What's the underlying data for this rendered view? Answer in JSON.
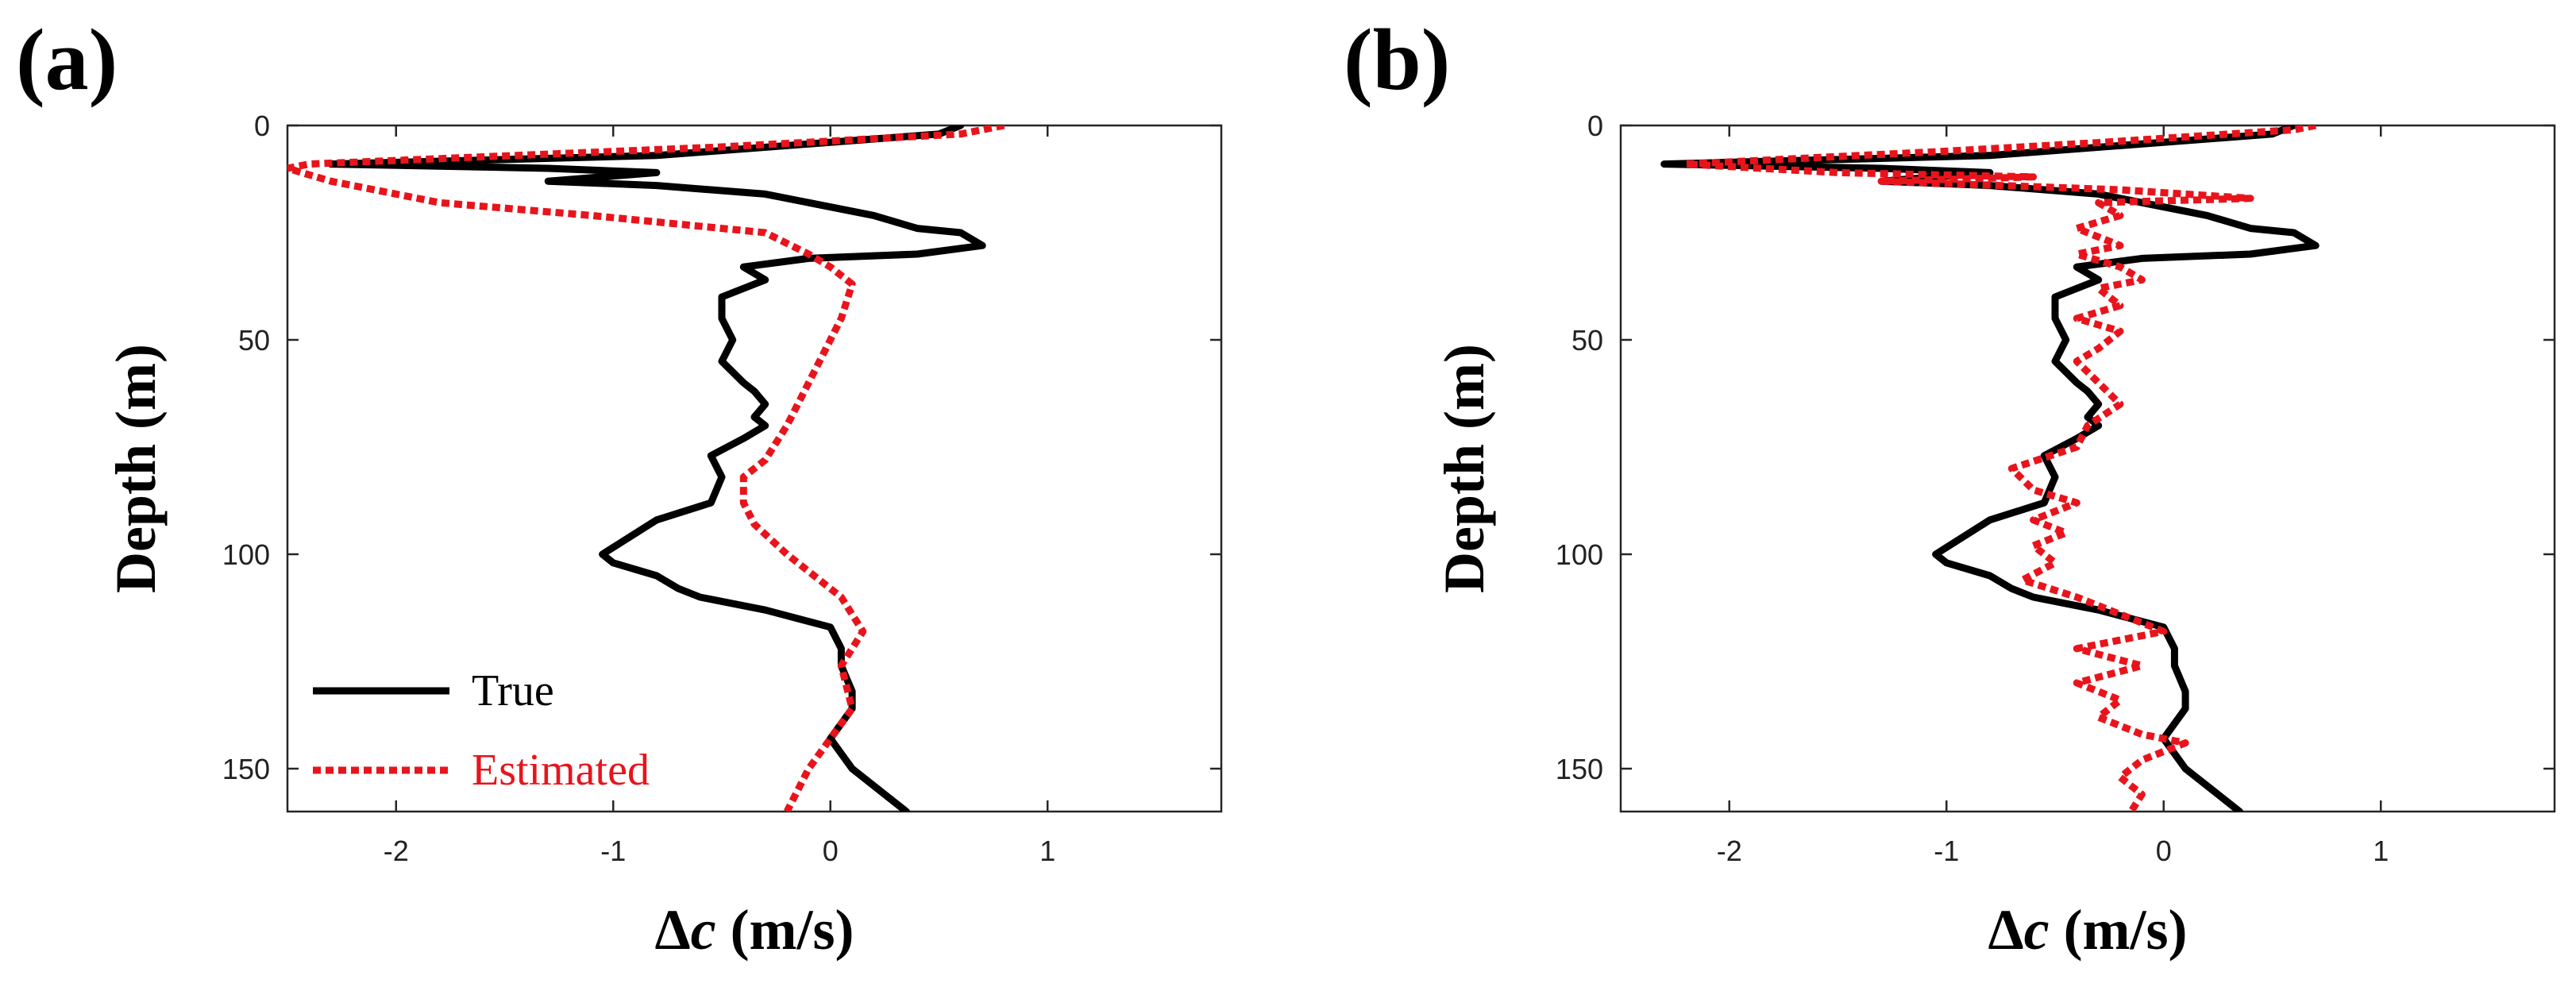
{
  "chart_data": [
    {
      "panel_label": "(a)",
      "type": "line",
      "orientation": "depth-profile",
      "xlabel_symbol": "Δ",
      "xlabel_var": "c",
      "xlabel_unit": " (m/s)",
      "ylabel": "Depth (m)",
      "xlim": [
        -2.5,
        1.8
      ],
      "ylim": [
        0,
        160
      ],
      "y_inverted": true,
      "xticks": [
        -2,
        -1,
        0,
        1
      ],
      "xtick_labels": [
        "-2",
        "-1",
        "0",
        "1"
      ],
      "yticks": [
        0,
        50,
        100,
        150
      ],
      "ytick_labels": [
        "0",
        "50",
        "100",
        "150"
      ],
      "legend": {
        "placement": "bottom-left",
        "entries": [
          "True",
          "Estimated"
        ]
      },
      "series": [
        {
          "name": "True",
          "color": "#000000",
          "style": "solid",
          "points": [
            [
              0.6,
              0
            ],
            [
              0.5,
              2
            ],
            [
              -0.8,
              7
            ],
            [
              -2.3,
              9
            ],
            [
              -1.3,
              10
            ],
            [
              -0.8,
              11
            ],
            [
              -1.3,
              13
            ],
            [
              -0.8,
              14
            ],
            [
              -0.3,
              16
            ],
            [
              0.2,
              21
            ],
            [
              0.4,
              24
            ],
            [
              0.6,
              25
            ],
            [
              0.7,
              28
            ],
            [
              0.4,
              30
            ],
            [
              -0.1,
              31
            ],
            [
              -0.4,
              33
            ],
            [
              -0.3,
              36
            ],
            [
              -0.5,
              40
            ],
            [
              -0.5,
              45
            ],
            [
              -0.45,
              50
            ],
            [
              -0.5,
              55
            ],
            [
              -0.4,
              60
            ],
            [
              -0.35,
              62
            ],
            [
              -0.3,
              65
            ],
            [
              -0.35,
              68
            ],
            [
              -0.3,
              70
            ],
            [
              -0.4,
              73
            ],
            [
              -0.55,
              77
            ],
            [
              -0.5,
              82
            ],
            [
              -0.55,
              88
            ],
            [
              -0.8,
              92
            ],
            [
              -1.05,
              100
            ],
            [
              -1.0,
              102
            ],
            [
              -0.8,
              105
            ],
            [
              -0.7,
              108
            ],
            [
              -0.6,
              110
            ],
            [
              -0.3,
              113
            ],
            [
              0.0,
              117
            ],
            [
              0.05,
              122
            ],
            [
              0.05,
              126
            ],
            [
              0.1,
              132
            ],
            [
              0.1,
              136
            ],
            [
              0.0,
              143
            ],
            [
              0.1,
              150
            ],
            [
              0.35,
              160
            ]
          ]
        },
        {
          "name": "Estimated",
          "color": "#e8141c",
          "style": "dotted",
          "points": [
            [
              0.8,
              0
            ],
            [
              0.6,
              2
            ],
            [
              -0.5,
              5
            ],
            [
              -2.4,
              9
            ],
            [
              -2.5,
              10
            ],
            [
              -2.3,
              13
            ],
            [
              -2.1,
              15
            ],
            [
              -1.8,
              18
            ],
            [
              -1.1,
              21
            ],
            [
              -0.3,
              25
            ],
            [
              -0.1,
              30
            ],
            [
              0.0,
              33
            ],
            [
              0.1,
              37
            ],
            [
              0.05,
              45
            ],
            [
              0.0,
              50
            ],
            [
              -0.1,
              60
            ],
            [
              -0.2,
              70
            ],
            [
              -0.3,
              78
            ],
            [
              -0.4,
              82
            ],
            [
              -0.4,
              88
            ],
            [
              -0.35,
              93
            ],
            [
              -0.2,
              100
            ],
            [
              0.05,
              110
            ],
            [
              0.15,
              118
            ],
            [
              0.05,
              126
            ],
            [
              0.1,
              136
            ],
            [
              0.0,
              143
            ],
            [
              -0.1,
              150
            ],
            [
              -0.2,
              160
            ]
          ]
        }
      ]
    },
    {
      "panel_label": "(b)",
      "type": "line",
      "orientation": "depth-profile",
      "xlabel_symbol": "Δ",
      "xlabel_var": "c",
      "xlabel_unit": " (m/s)",
      "ylabel": "Depth (m)",
      "xlim": [
        -2.5,
        1.8
      ],
      "ylim": [
        0,
        160
      ],
      "y_inverted": true,
      "xticks": [
        -2,
        -1,
        0,
        1
      ],
      "xtick_labels": [
        "-2",
        "-1",
        "0",
        "1"
      ],
      "yticks": [
        0,
        50,
        100,
        150
      ],
      "ytick_labels": [
        "0",
        "50",
        "100",
        "150"
      ],
      "legend": null,
      "series": [
        {
          "name": "True",
          "color": "#000000",
          "style": "solid",
          "points": [
            [
              0.6,
              0
            ],
            [
              0.5,
              2
            ],
            [
              -0.8,
              7
            ],
            [
              -2.3,
              9
            ],
            [
              -1.3,
              10
            ],
            [
              -0.8,
              11
            ],
            [
              -1.3,
              13
            ],
            [
              -0.8,
              14
            ],
            [
              -0.3,
              16
            ],
            [
              0.2,
              21
            ],
            [
              0.4,
              24
            ],
            [
              0.6,
              25
            ],
            [
              0.7,
              28
            ],
            [
              0.4,
              30
            ],
            [
              -0.1,
              31
            ],
            [
              -0.4,
              33
            ],
            [
              -0.3,
              36
            ],
            [
              -0.5,
              40
            ],
            [
              -0.5,
              45
            ],
            [
              -0.45,
              50
            ],
            [
              -0.5,
              55
            ],
            [
              -0.4,
              60
            ],
            [
              -0.35,
              62
            ],
            [
              -0.3,
              65
            ],
            [
              -0.35,
              68
            ],
            [
              -0.3,
              70
            ],
            [
              -0.4,
              73
            ],
            [
              -0.55,
              77
            ],
            [
              -0.5,
              82
            ],
            [
              -0.55,
              88
            ],
            [
              -0.8,
              92
            ],
            [
              -1.05,
              100
            ],
            [
              -1.0,
              102
            ],
            [
              -0.8,
              105
            ],
            [
              -0.7,
              108
            ],
            [
              -0.6,
              110
            ],
            [
              -0.3,
              113
            ],
            [
              0.0,
              117
            ],
            [
              0.05,
              122
            ],
            [
              0.05,
              126
            ],
            [
              0.1,
              132
            ],
            [
              0.1,
              136
            ],
            [
              0.0,
              143
            ],
            [
              0.1,
              150
            ],
            [
              0.35,
              160
            ]
          ]
        },
        {
          "name": "Estimated",
          "color": "#e8141c",
          "style": "dotted",
          "points": [
            [
              0.7,
              0
            ],
            [
              0.6,
              1
            ],
            [
              -0.3,
              4
            ],
            [
              -1.0,
              6
            ],
            [
              -2.2,
              9
            ],
            [
              -1.5,
              11
            ],
            [
              -0.6,
              12
            ],
            [
              -1.3,
              13
            ],
            [
              -0.2,
              15
            ],
            [
              0.4,
              17
            ],
            [
              -0.3,
              18
            ],
            [
              -0.2,
              21
            ],
            [
              -0.4,
              24
            ],
            [
              -0.2,
              28
            ],
            [
              -0.4,
              30
            ],
            [
              -0.2,
              33
            ],
            [
              -0.1,
              36
            ],
            [
              -0.3,
              38
            ],
            [
              -0.2,
              42
            ],
            [
              -0.4,
              45
            ],
            [
              -0.2,
              48
            ],
            [
              -0.3,
              52
            ],
            [
              -0.4,
              55
            ],
            [
              -0.3,
              60
            ],
            [
              -0.2,
              65
            ],
            [
              -0.35,
              70
            ],
            [
              -0.4,
              75
            ],
            [
              -0.7,
              80
            ],
            [
              -0.6,
              85
            ],
            [
              -0.4,
              88
            ],
            [
              -0.6,
              92
            ],
            [
              -0.45,
              95
            ],
            [
              -0.6,
              98
            ],
            [
              -0.5,
              102
            ],
            [
              -0.65,
              106
            ],
            [
              -0.4,
              110
            ],
            [
              0.0,
              118
            ],
            [
              -0.4,
              122
            ],
            [
              -0.1,
              126
            ],
            [
              -0.4,
              130
            ],
            [
              -0.2,
              134
            ],
            [
              -0.3,
              138
            ],
            [
              -0.1,
              142
            ],
            [
              0.1,
              144
            ],
            [
              -0.1,
              148
            ],
            [
              -0.2,
              152
            ],
            [
              -0.1,
              156
            ],
            [
              -0.15,
              160
            ]
          ]
        }
      ]
    }
  ]
}
